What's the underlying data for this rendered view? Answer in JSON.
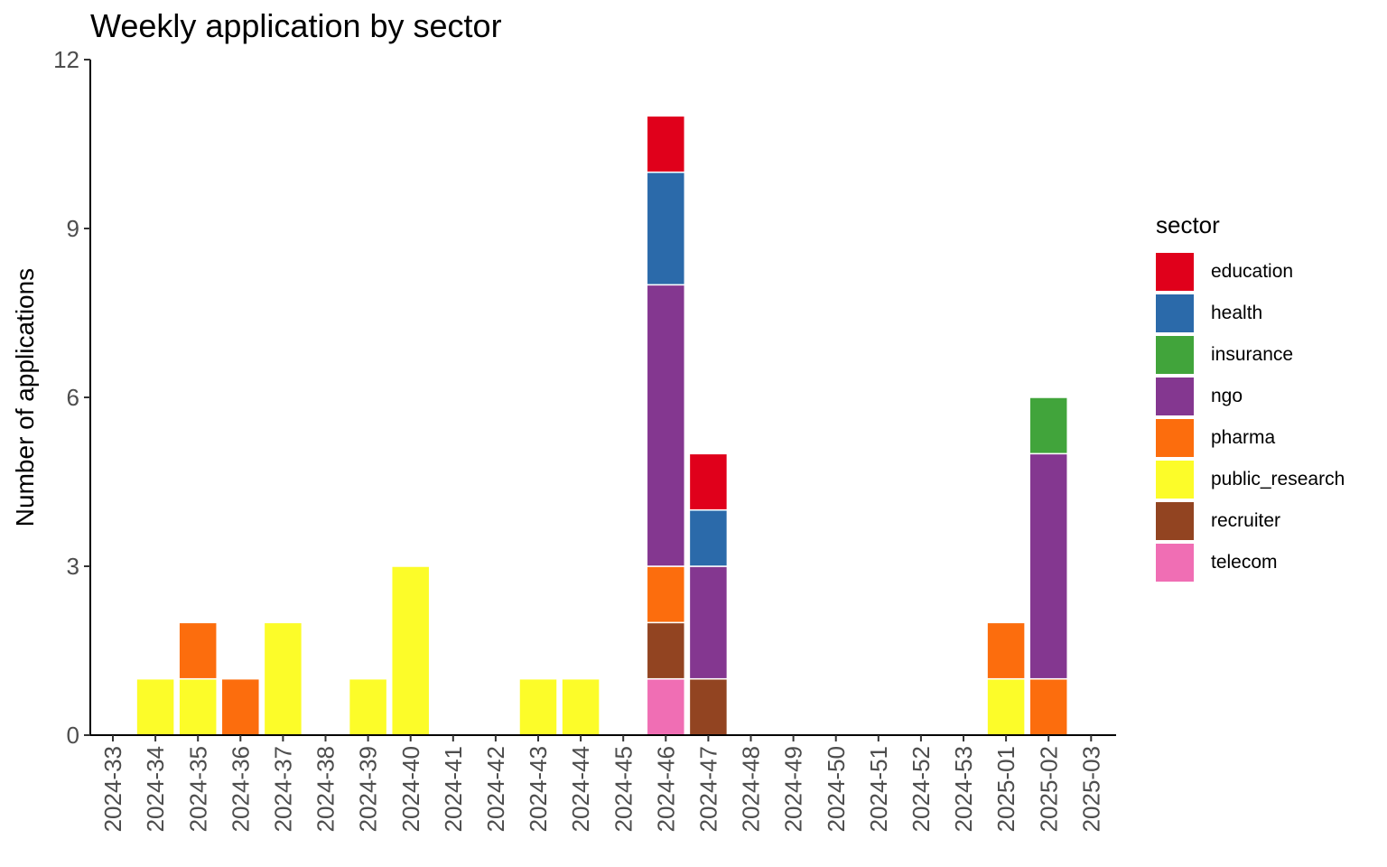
{
  "chart_data": {
    "type": "bar",
    "stacked": true,
    "title": "Weekly application by sector",
    "xlabel": "",
    "ylabel": "Number of applications",
    "ylim": [
      0,
      12
    ],
    "yticks": [
      0,
      3,
      6,
      9,
      12
    ],
    "grid": false,
    "legend_position": "right",
    "legend_title": "sector",
    "categories": [
      "2024-33",
      "2024-34",
      "2024-35",
      "2024-36",
      "2024-37",
      "2024-38",
      "2024-39",
      "2024-40",
      "2024-41",
      "2024-42",
      "2024-43",
      "2024-44",
      "2024-45",
      "2024-46",
      "2024-47",
      "2024-48",
      "2024-49",
      "2024-50",
      "2024-51",
      "2024-52",
      "2024-53",
      "2025-01",
      "2025-02",
      "2025-03"
    ],
    "series": [
      {
        "name": "education",
        "color": "#e0001b",
        "values": [
          0,
          0,
          0,
          0,
          0,
          0,
          0,
          0,
          0,
          0,
          0,
          0,
          0,
          1,
          1,
          0,
          0,
          0,
          0,
          0,
          0,
          0,
          0,
          0
        ]
      },
      {
        "name": "health",
        "color": "#2b6aaa",
        "values": [
          0,
          0,
          0,
          0,
          0,
          0,
          0,
          0,
          0,
          0,
          0,
          0,
          0,
          2,
          1,
          0,
          0,
          0,
          0,
          0,
          0,
          0,
          0,
          0
        ]
      },
      {
        "name": "insurance",
        "color": "#41a43b",
        "values": [
          0,
          0,
          0,
          0,
          0,
          0,
          0,
          0,
          0,
          0,
          0,
          0,
          0,
          0,
          0,
          0,
          0,
          0,
          0,
          0,
          0,
          0,
          1,
          0
        ]
      },
      {
        "name": "ngo",
        "color": "#843790",
        "values": [
          0,
          0,
          0,
          0,
          0,
          0,
          0,
          0,
          0,
          0,
          0,
          0,
          0,
          5,
          2,
          0,
          0,
          0,
          0,
          0,
          0,
          0,
          4,
          0
        ]
      },
      {
        "name": "pharma",
        "color": "#fc6d0d",
        "values": [
          0,
          0,
          1,
          1,
          0,
          0,
          0,
          0,
          0,
          0,
          0,
          0,
          0,
          1,
          0,
          0,
          0,
          0,
          0,
          0,
          0,
          1,
          1,
          0
        ]
      },
      {
        "name": "public_research",
        "color": "#fcfc29",
        "values": [
          0,
          1,
          1,
          0,
          2,
          0,
          1,
          3,
          0,
          0,
          1,
          1,
          0,
          0,
          0,
          0,
          0,
          0,
          0,
          0,
          0,
          1,
          0,
          0
        ]
      },
      {
        "name": "recruiter",
        "color": "#924421",
        "values": [
          0,
          0,
          0,
          0,
          0,
          0,
          0,
          0,
          0,
          0,
          0,
          0,
          0,
          1,
          1,
          0,
          0,
          0,
          0,
          0,
          0,
          0,
          0,
          0
        ]
      },
      {
        "name": "telecom",
        "color": "#f06eb4",
        "values": [
          0,
          0,
          0,
          0,
          0,
          0,
          0,
          0,
          0,
          0,
          0,
          0,
          0,
          1,
          0,
          0,
          0,
          0,
          0,
          0,
          0,
          0,
          0,
          0
        ]
      }
    ]
  }
}
